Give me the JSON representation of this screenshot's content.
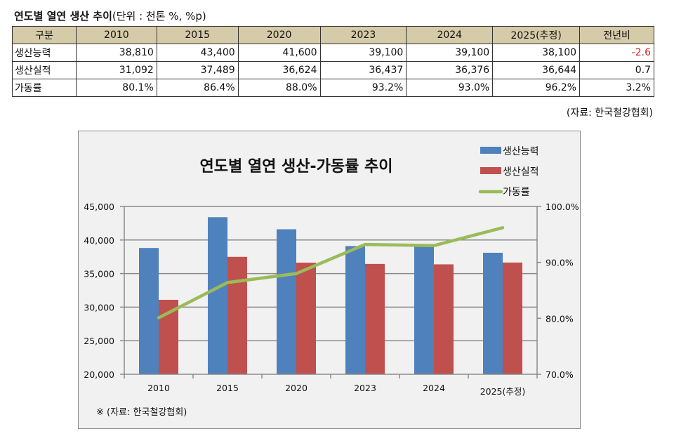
{
  "table": {
    "title_bold": "연도별 열연 생산 추이",
    "title_unit": "(단위 : 천톤 %, %p)",
    "headers": [
      "구분",
      "2010",
      "2015",
      "2020",
      "2023",
      "2024",
      "2025(추정)",
      "전년비"
    ],
    "rows": [
      {
        "label": "생산능력",
        "values": [
          "38,810",
          "43,400",
          "41,600",
          "39,100",
          "39,100",
          "38,100"
        ],
        "yoy": "-2.6",
        "yoy_negative": true
      },
      {
        "label": "생산실적",
        "values": [
          "31,092",
          "37,489",
          "36,624",
          "36,437",
          "36,376",
          "36,644"
        ],
        "yoy": "0.7",
        "yoy_negative": false
      },
      {
        "label": "가동률",
        "values": [
          "80.1%",
          "86.4%",
          "88.0%",
          "93.2%",
          "93.0%",
          "96.2%"
        ],
        "yoy": "3.2%",
        "yoy_negative": false
      }
    ],
    "source": "(자료: 한국철강협회)"
  },
  "colors": {
    "capacity": "#4f81bd",
    "output": "#c0504d",
    "rate": "#9bbb59",
    "header_bg": "#d5cba8",
    "negative": "#d62020"
  },
  "chart_data": {
    "type": "bar",
    "title": "연도별 열연 생산-가동률 추이",
    "categories": [
      "2010",
      "2015",
      "2020",
      "2023",
      "2024",
      "2025(추정)"
    ],
    "series": [
      {
        "name": "생산능력",
        "kind": "bar",
        "axis": "left",
        "values": [
          38810,
          43400,
          41600,
          39100,
          39100,
          38100
        ]
      },
      {
        "name": "생산실적",
        "kind": "bar",
        "axis": "left",
        "values": [
          31092,
          37489,
          36624,
          36437,
          36376,
          36644
        ]
      },
      {
        "name": "가동률",
        "kind": "line",
        "axis": "right",
        "values": [
          80.1,
          86.4,
          88.0,
          93.2,
          93.0,
          96.2
        ]
      }
    ],
    "ylim": [
      20000,
      45000
    ],
    "yticks": [
      20000,
      25000,
      30000,
      35000,
      40000,
      45000
    ],
    "ytick_labels": [
      "20,000",
      "25,000",
      "30,000",
      "35,000",
      "40,000",
      "45,000"
    ],
    "y2lim": [
      70,
      100
    ],
    "y2ticks": [
      70,
      80,
      90,
      100
    ],
    "y2tick_labels": [
      "70.0%",
      "80.0%",
      "90.0%",
      "100.0%"
    ],
    "xlabel": "",
    "ylabel": "",
    "y2label": "",
    "grid": true,
    "legend_position": "top-right",
    "annotation": "※ (자료: 한국철강협회)"
  }
}
